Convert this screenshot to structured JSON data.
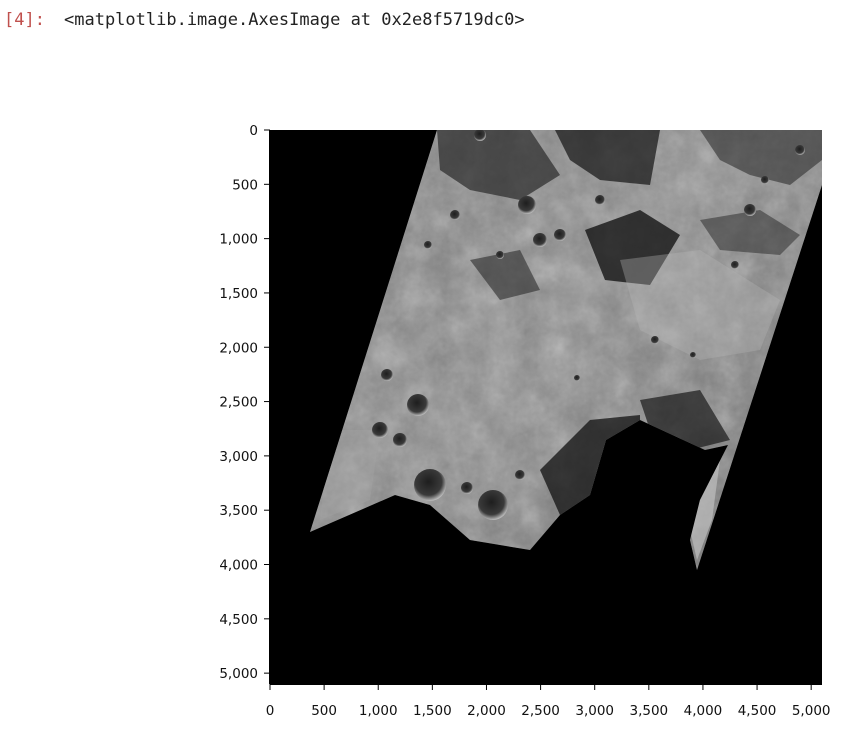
{
  "cell": {
    "prompt": "[4]:",
    "output_text": "<matplotlib.image.AxesImage at 0x2e8f5719dc0>"
  },
  "chart_data": {
    "type": "image",
    "title": "",
    "xlabel": "",
    "ylabel": "",
    "xlim": [
      0,
      5100
    ],
    "ylim": [
      5100,
      0
    ],
    "x_ticks": [
      0,
      500,
      1000,
      1500,
      2000,
      2500,
      3000,
      3500,
      4000,
      4500,
      5000
    ],
    "y_ticks": [
      0,
      500,
      1000,
      1500,
      2000,
      2500,
      3000,
      3500,
      4000,
      4500,
      5000
    ],
    "x_tick_labels": [
      "0",
      "500",
      "1,000",
      "1,500",
      "2,000",
      "2,500",
      "3,000",
      "3,500",
      "4,000",
      "4,500",
      "5,000"
    ],
    "y_tick_labels": [
      "0",
      "500",
      "1,000",
      "1,500",
      "2,000",
      "2,500",
      "3,000",
      "3,500",
      "4,000",
      "4,500",
      "5,000"
    ],
    "grid": false,
    "colormap": "gray",
    "background_color": "#000000"
  }
}
